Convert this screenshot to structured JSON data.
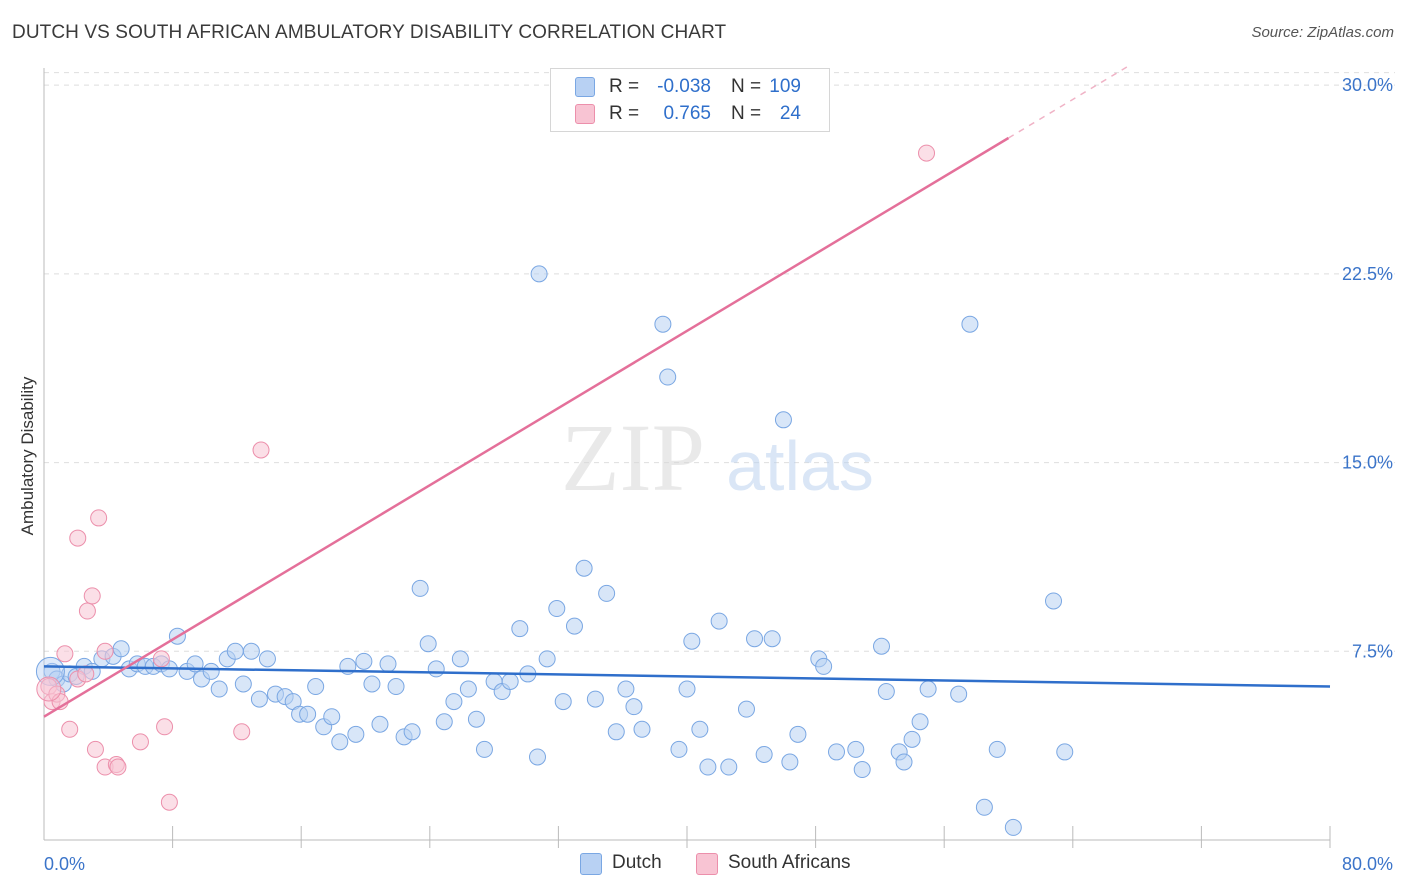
{
  "header": {
    "title": "DUTCH VS SOUTH AFRICAN AMBULATORY DISABILITY CORRELATION CHART",
    "source": "Source: ZipAtlas.com"
  },
  "legend": {
    "r_label": "R =",
    "n_label": "N =",
    "series": [
      {
        "name": "Dutch",
        "r": "-0.038",
        "n": "109",
        "color": "#7aa7e3",
        "fill": "#b8d1f3"
      },
      {
        "name": "South Africans",
        "r": "0.765",
        "n": "24",
        "color": "#ec8fab",
        "fill": "#f8c4d3"
      }
    ]
  },
  "watermark": {
    "zip": "ZIP",
    "atlas": "atlas"
  },
  "chart_data": {
    "type": "scatter",
    "title": "DUTCH VS SOUTH AFRICAN AMBULATORY DISABILITY CORRELATION CHART",
    "xlabel": "",
    "ylabel": "Ambulatory Disability",
    "xlim": [
      0,
      80
    ],
    "ylim": [
      0,
      31
    ],
    "x_tick_labels": [
      "0.0%",
      "80.0%"
    ],
    "y_ticks": [
      7.5,
      15.0,
      22.5,
      30.0
    ],
    "y_tick_labels": [
      "7.5%",
      "15.0%",
      "22.5%",
      "30.0%"
    ],
    "grid": true,
    "series": [
      {
        "name": "Dutch",
        "color": "#2f6fcb",
        "trendline": {
          "x0": 0,
          "y0": 6.9,
          "x1": 80,
          "y1": 6.1
        },
        "points": [
          [
            0.5,
            6.7
          ],
          [
            0.8,
            6.4
          ],
          [
            1.2,
            6.2
          ],
          [
            1.6,
            6.6
          ],
          [
            2.0,
            6.5
          ],
          [
            2.5,
            6.9
          ],
          [
            3.0,
            6.7
          ],
          [
            3.6,
            7.2
          ],
          [
            4.3,
            7.3
          ],
          [
            4.8,
            7.6
          ],
          [
            5.3,
            6.8
          ],
          [
            5.8,
            7.0
          ],
          [
            6.3,
            6.9
          ],
          [
            6.8,
            6.9
          ],
          [
            7.3,
            7.0
          ],
          [
            7.8,
            6.8
          ],
          [
            8.3,
            8.1
          ],
          [
            8.9,
            6.7
          ],
          [
            9.4,
            7.0
          ],
          [
            9.8,
            6.4
          ],
          [
            10.4,
            6.7
          ],
          [
            10.9,
            6.0
          ],
          [
            11.4,
            7.2
          ],
          [
            11.9,
            7.5
          ],
          [
            12.4,
            6.2
          ],
          [
            12.9,
            7.5
          ],
          [
            13.4,
            5.6
          ],
          [
            13.9,
            7.2
          ],
          [
            14.4,
            5.8
          ],
          [
            15.0,
            5.7
          ],
          [
            15.5,
            5.5
          ],
          [
            15.9,
            5.0
          ],
          [
            16.4,
            5.0
          ],
          [
            16.9,
            6.1
          ],
          [
            17.4,
            4.5
          ],
          [
            17.9,
            4.9
          ],
          [
            18.4,
            3.9
          ],
          [
            18.9,
            6.9
          ],
          [
            19.4,
            4.2
          ],
          [
            19.9,
            7.1
          ],
          [
            20.4,
            6.2
          ],
          [
            20.9,
            4.6
          ],
          [
            21.4,
            7.0
          ],
          [
            21.9,
            6.1
          ],
          [
            22.4,
            4.1
          ],
          [
            22.9,
            4.3
          ],
          [
            23.4,
            10.0
          ],
          [
            23.9,
            7.8
          ],
          [
            24.4,
            6.8
          ],
          [
            24.9,
            4.7
          ],
          [
            25.5,
            5.5
          ],
          [
            25.9,
            7.2
          ],
          [
            26.4,
            6.0
          ],
          [
            26.9,
            4.8
          ],
          [
            27.4,
            3.6
          ],
          [
            28.0,
            6.3
          ],
          [
            28.5,
            5.9
          ],
          [
            29.0,
            6.3
          ],
          [
            29.6,
            8.4
          ],
          [
            30.1,
            6.6
          ],
          [
            30.7,
            3.3
          ],
          [
            31.3,
            7.2
          ],
          [
            31.9,
            9.2
          ],
          [
            32.3,
            5.5
          ],
          [
            33.0,
            8.5
          ],
          [
            33.6,
            10.8
          ],
          [
            34.3,
            5.6
          ],
          [
            35.0,
            9.8
          ],
          [
            35.6,
            4.3
          ],
          [
            36.2,
            6.0
          ],
          [
            36.7,
            5.3
          ],
          [
            37.2,
            4.4
          ],
          [
            38.5,
            20.5
          ],
          [
            38.8,
            18.4
          ],
          [
            39.5,
            3.6
          ],
          [
            40.0,
            6.0
          ],
          [
            40.3,
            7.9
          ],
          [
            40.8,
            4.4
          ],
          [
            41.3,
            2.9
          ],
          [
            42.0,
            8.7
          ],
          [
            42.6,
            2.9
          ],
          [
            43.7,
            5.2
          ],
          [
            44.2,
            8.0
          ],
          [
            44.8,
            3.4
          ],
          [
            45.3,
            8.0
          ],
          [
            46.0,
            16.7
          ],
          [
            46.4,
            3.1
          ],
          [
            46.9,
            4.2
          ],
          [
            48.2,
            7.2
          ],
          [
            48.5,
            6.9
          ],
          [
            49.3,
            3.5
          ],
          [
            50.5,
            3.6
          ],
          [
            50.9,
            2.8
          ],
          [
            52.1,
            7.7
          ],
          [
            52.4,
            5.9
          ],
          [
            53.2,
            3.5
          ],
          [
            53.5,
            3.1
          ],
          [
            54.0,
            4.0
          ],
          [
            54.5,
            4.7
          ],
          [
            55.0,
            6.0
          ],
          [
            56.9,
            5.8
          ],
          [
            57.6,
            20.5
          ],
          [
            58.5,
            1.3
          ],
          [
            59.3,
            3.6
          ],
          [
            60.3,
            0.5
          ],
          [
            62.8,
            9.5
          ],
          [
            63.5,
            3.5
          ],
          [
            30.8,
            22.5
          ]
        ]
      },
      {
        "name": "South Africans",
        "color": "#e4709a",
        "trendline": {
          "x0": 0,
          "y0": 4.9,
          "x1": 60,
          "y1": 27.9,
          "dashed_to_x": 67.5
        },
        "points": [
          [
            0.3,
            6.1
          ],
          [
            0.5,
            5.5
          ],
          [
            0.8,
            5.8
          ],
          [
            1.0,
            5.5
          ],
          [
            1.3,
            7.4
          ],
          [
            1.6,
            4.4
          ],
          [
            2.1,
            6.4
          ],
          [
            2.1,
            12.0
          ],
          [
            2.6,
            6.6
          ],
          [
            2.7,
            9.1
          ],
          [
            3.0,
            9.7
          ],
          [
            3.2,
            3.6
          ],
          [
            3.4,
            12.8
          ],
          [
            3.8,
            7.5
          ],
          [
            3.8,
            2.9
          ],
          [
            4.5,
            3.0
          ],
          [
            4.6,
            2.9
          ],
          [
            6.0,
            3.9
          ],
          [
            7.3,
            7.2
          ],
          [
            7.5,
            4.5
          ],
          [
            7.8,
            1.5
          ],
          [
            12.3,
            4.3
          ],
          [
            13.5,
            15.5
          ],
          [
            54.9,
            27.3
          ]
        ]
      }
    ]
  }
}
